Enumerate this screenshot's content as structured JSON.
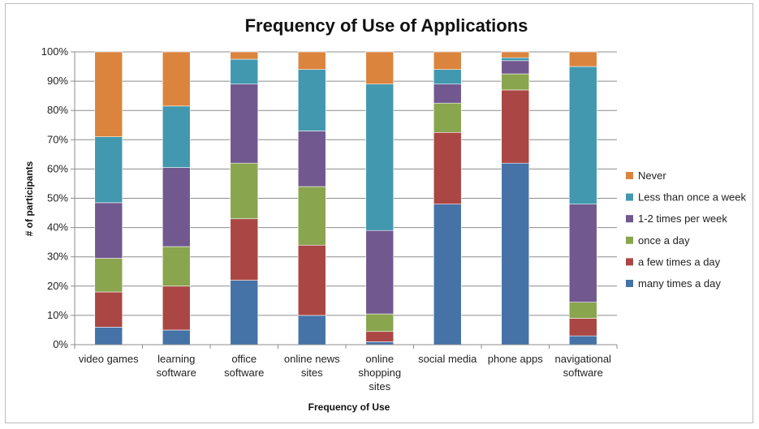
{
  "chart_data": {
    "type": "bar",
    "stacked": true,
    "title": "Frequency of Use of Applications",
    "xlabel": "Frequency of Use",
    "ylabel": "# of participants",
    "ylim": [
      0,
      100
    ],
    "y_tick_labels": [
      "0%",
      "10%",
      "20%",
      "30%",
      "40%",
      "50%",
      "60%",
      "70%",
      "80%",
      "90%",
      "100%"
    ],
    "grid": true,
    "legend_position": "right",
    "categories": [
      [
        "video games"
      ],
      [
        "learning",
        "software"
      ],
      [
        "office",
        "software"
      ],
      [
        "online news",
        "sites"
      ],
      [
        "online",
        "shopping",
        "sites"
      ],
      [
        "social media"
      ],
      [
        "phone apps"
      ],
      [
        "navigational",
        "software"
      ]
    ],
    "series": [
      {
        "name": "many times a day",
        "color": "#4572a7",
        "values": [
          6,
          5,
          22,
          10,
          1,
          48,
          62,
          3
        ]
      },
      {
        "name": "a few times a day",
        "color": "#aa4643",
        "values": [
          12,
          15,
          21,
          24,
          3.5,
          24.5,
          25,
          6
        ]
      },
      {
        "name": "once a day",
        "color": "#89a54e",
        "values": [
          11.5,
          13.5,
          19,
          20,
          6,
          10,
          5.5,
          5.5
        ]
      },
      {
        "name": "1-2 times per week",
        "color": "#71588f",
        "values": [
          19,
          27,
          27,
          19,
          28.5,
          6.5,
          4.5,
          33.5
        ]
      },
      {
        "name": "Less than once a week",
        "color": "#4198af",
        "values": [
          22.5,
          21,
          8.5,
          21,
          50,
          5,
          1,
          47
        ]
      },
      {
        "name": "Never",
        "color": "#db843d",
        "values": [
          29,
          18.5,
          2.5,
          6,
          11,
          6,
          2,
          5
        ]
      }
    ]
  }
}
